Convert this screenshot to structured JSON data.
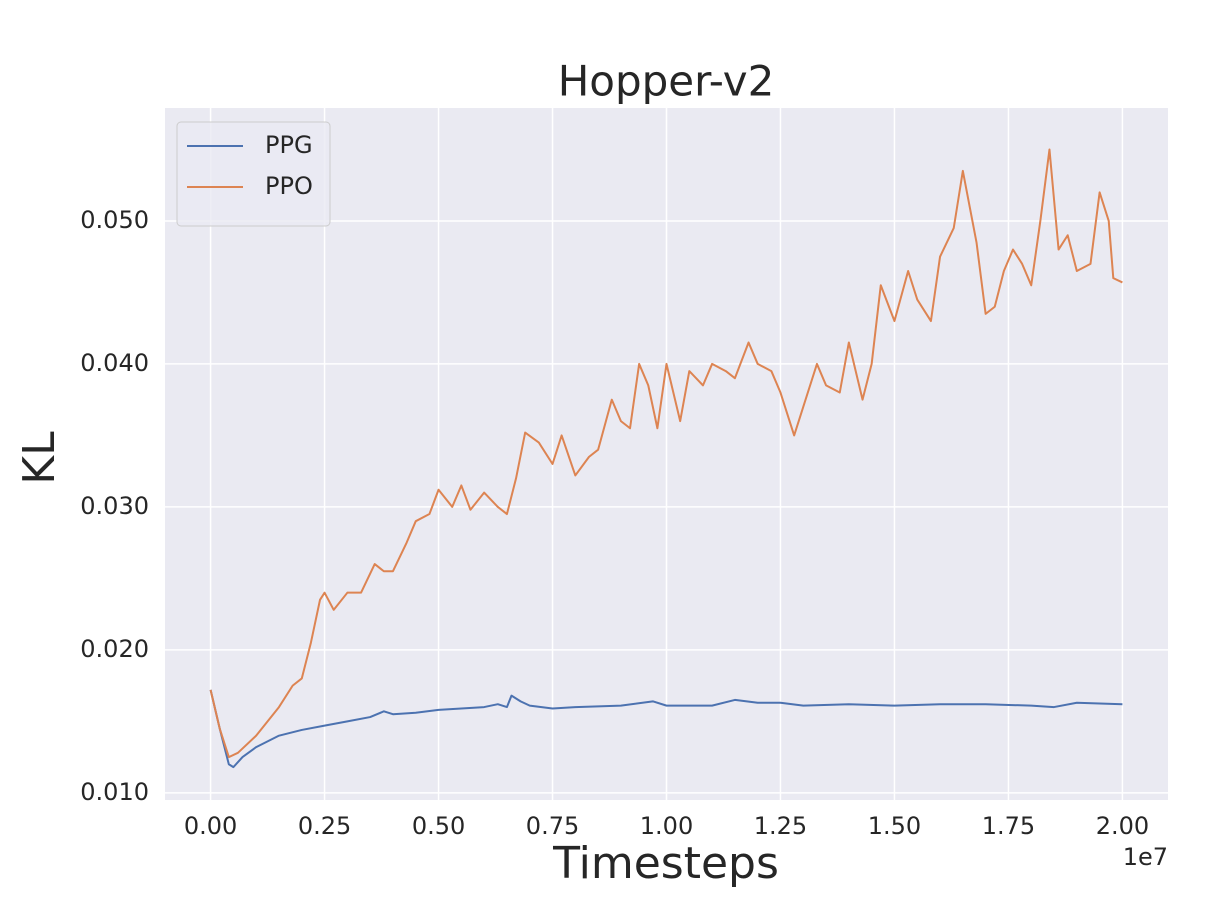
{
  "chart_data": {
    "type": "line",
    "title": "Hopper-v2",
    "xlabel": "Timesteps",
    "ylabel": "KL",
    "x_offset_label": "1e7",
    "xlim": [
      -1000000,
      21000000
    ],
    "xticks": [
      {
        "value": 0,
        "label": "0.00"
      },
      {
        "value": 2500000,
        "label": "0.25"
      },
      {
        "value": 5000000,
        "label": "0.50"
      },
      {
        "value": 7500000,
        "label": "0.75"
      },
      {
        "value": 10000000,
        "label": "1.00"
      },
      {
        "value": 12500000,
        "label": "1.25"
      },
      {
        "value": 15000000,
        "label": "1.50"
      },
      {
        "value": 17500000,
        "label": "1.75"
      },
      {
        "value": 20000000,
        "label": "2.00"
      }
    ],
    "ylim": [
      0.0095,
      0.0579
    ],
    "yticks": [
      {
        "value": 0.01,
        "label": "0.010"
      },
      {
        "value": 0.02,
        "label": "0.020"
      },
      {
        "value": 0.03,
        "label": "0.030"
      },
      {
        "value": 0.04,
        "label": "0.040"
      },
      {
        "value": 0.05,
        "label": "0.050"
      }
    ],
    "grid": true,
    "legend": "upper left",
    "series": [
      {
        "name": "PPG",
        "color": "#4c72b0",
        "x": [
          0,
          200000,
          400000,
          500000,
          700000,
          1000000,
          1500000,
          2000000,
          2500000,
          3000000,
          3500000,
          3800000,
          4000000,
          4500000,
          5000000,
          5500000,
          6000000,
          6300000,
          6500000,
          6600000,
          6800000,
          7000000,
          7500000,
          8000000,
          9000000,
          9700000,
          10000000,
          11000000,
          11500000,
          12000000,
          12500000,
          13000000,
          14000000,
          15000000,
          16000000,
          17000000,
          18000000,
          18500000,
          19000000,
          20000000
        ],
        "values": [
          0.0172,
          0.0145,
          0.012,
          0.0118,
          0.0125,
          0.0132,
          0.014,
          0.0144,
          0.0147,
          0.015,
          0.0153,
          0.0157,
          0.0155,
          0.0156,
          0.0158,
          0.0159,
          0.016,
          0.0162,
          0.016,
          0.0168,
          0.0164,
          0.0161,
          0.0159,
          0.016,
          0.0161,
          0.0164,
          0.0161,
          0.0161,
          0.0165,
          0.0163,
          0.0163,
          0.0161,
          0.0162,
          0.0161,
          0.0162,
          0.0162,
          0.0161,
          0.016,
          0.0163,
          0.0162
        ]
      },
      {
        "name": "PPO",
        "color": "#dd8452",
        "x": [
          0,
          200000,
          400000,
          600000,
          1000000,
          1500000,
          1800000,
          2000000,
          2200000,
          2400000,
          2500000,
          2700000,
          3000000,
          3300000,
          3600000,
          3800000,
          4000000,
          4300000,
          4500000,
          4800000,
          5000000,
          5300000,
          5500000,
          5700000,
          6000000,
          6300000,
          6500000,
          6700000,
          6900000,
          7200000,
          7500000,
          7700000,
          8000000,
          8300000,
          8500000,
          8800000,
          9000000,
          9200000,
          9400000,
          9600000,
          9800000,
          10000000,
          10300000,
          10500000,
          10800000,
          11000000,
          11300000,
          11500000,
          11800000,
          12000000,
          12300000,
          12500000,
          12800000,
          13000000,
          13300000,
          13500000,
          13800000,
          14000000,
          14300000,
          14500000,
          14700000,
          15000000,
          15300000,
          15500000,
          15800000,
          16000000,
          16300000,
          16500000,
          16800000,
          17000000,
          17200000,
          17400000,
          17600000,
          17800000,
          18000000,
          18200000,
          18400000,
          18600000,
          18800000,
          19000000,
          19300000,
          19500000,
          19700000,
          19800000,
          20000000
        ],
        "values": [
          0.0172,
          0.0145,
          0.0125,
          0.0128,
          0.014,
          0.016,
          0.0175,
          0.018,
          0.0205,
          0.0235,
          0.024,
          0.0228,
          0.024,
          0.024,
          0.026,
          0.0255,
          0.0255,
          0.0275,
          0.029,
          0.0295,
          0.0312,
          0.03,
          0.0315,
          0.0298,
          0.031,
          0.03,
          0.0295,
          0.032,
          0.0352,
          0.0345,
          0.033,
          0.035,
          0.0322,
          0.0335,
          0.034,
          0.0375,
          0.036,
          0.0355,
          0.04,
          0.0385,
          0.0355,
          0.04,
          0.036,
          0.0395,
          0.0385,
          0.04,
          0.0395,
          0.039,
          0.0415,
          0.04,
          0.0395,
          0.038,
          0.035,
          0.037,
          0.04,
          0.0385,
          0.038,
          0.0415,
          0.0375,
          0.04,
          0.0455,
          0.043,
          0.0465,
          0.0445,
          0.043,
          0.0475,
          0.0495,
          0.0535,
          0.0485,
          0.0435,
          0.044,
          0.0465,
          0.048,
          0.047,
          0.0455,
          0.05,
          0.055,
          0.048,
          0.049,
          0.0465,
          0.047,
          0.052,
          0.05,
          0.046,
          0.0457
        ]
      }
    ]
  }
}
